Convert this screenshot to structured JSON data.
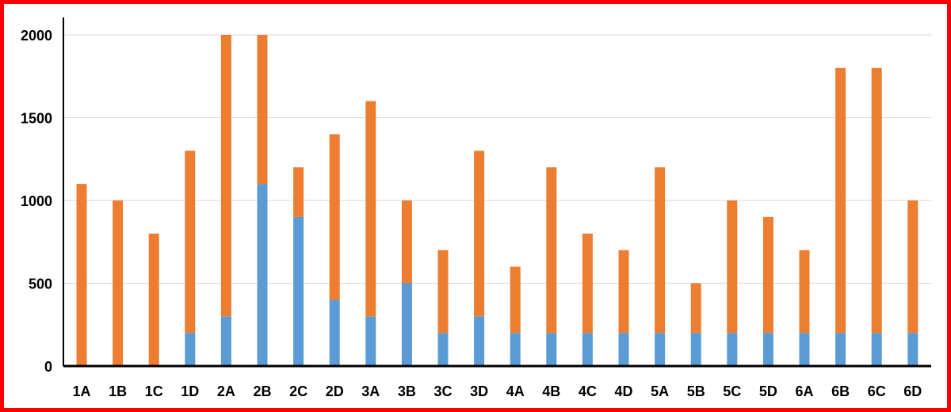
{
  "chart_data": {
    "type": "bar",
    "stacked": true,
    "title": "",
    "xlabel": "",
    "ylabel": "",
    "ylim": [
      0,
      2000
    ],
    "yticks": [
      0,
      500,
      1000,
      1500,
      2000
    ],
    "grid": true,
    "legend": "none",
    "categories": [
      "1A",
      "1B",
      "1C",
      "1D",
      "2A",
      "2B",
      "2C",
      "2D",
      "3A",
      "3B",
      "3C",
      "3D",
      "4A",
      "4B",
      "4C",
      "4D",
      "5A",
      "5B",
      "5C",
      "5D",
      "6A",
      "6B",
      "6C",
      "6D"
    ],
    "series": [
      {
        "color": "#5b9bd5",
        "values": [
          0,
          0,
          0,
          200,
          300,
          1100,
          900,
          400,
          300,
          500,
          200,
          300,
          200,
          200,
          200,
          200,
          200,
          200,
          200,
          200,
          200,
          200,
          200,
          200
        ]
      },
      {
        "color": "#ed7d31",
        "values": [
          1100,
          1000,
          800,
          1100,
          1700,
          900,
          300,
          1000,
          1300,
          500,
          500,
          1000,
          400,
          1000,
          600,
          500,
          1000,
          300,
          800,
          700,
          500,
          1600,
          1600,
          800
        ]
      }
    ]
  }
}
